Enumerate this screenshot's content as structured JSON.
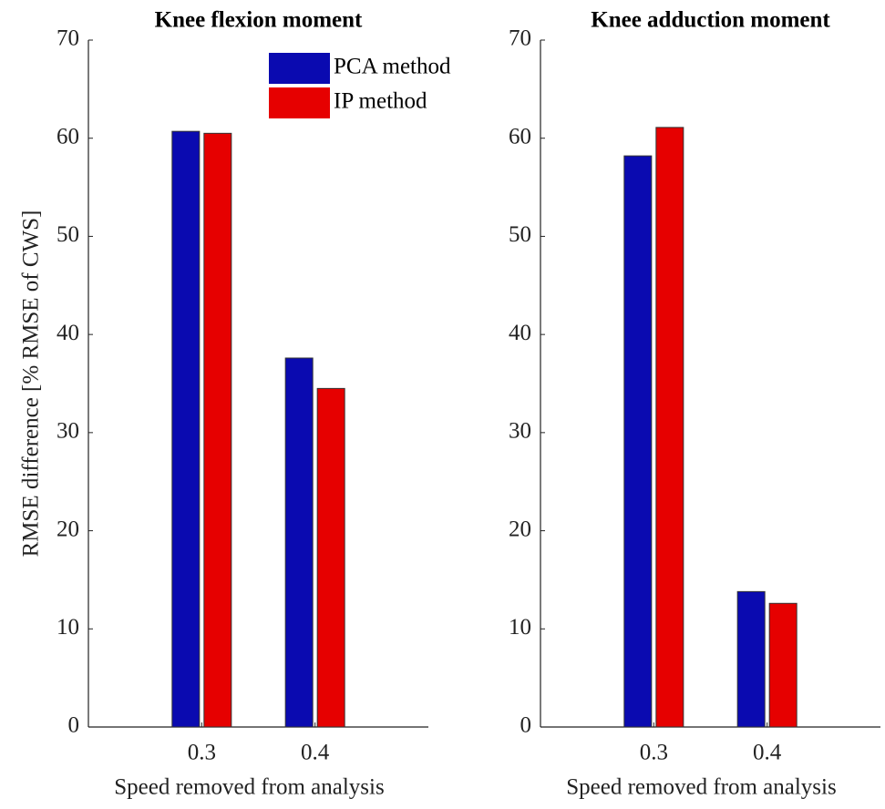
{
  "chart_data": [
    {
      "type": "bar",
      "title": "Knee flexion moment",
      "ylabel": "RMSE difference [% RMSE of CWS]",
      "xlabel": "Speed removed from analysis",
      "categories": [
        "0.3",
        "0.4"
      ],
      "series": [
        {
          "name": "PCA method",
          "color": "#0a0ab0",
          "values": [
            60.7,
            37.6
          ]
        },
        {
          "name": "IP method",
          "color": "#e60000",
          "values": [
            60.5,
            34.5
          ]
        }
      ],
      "ylim": [
        0,
        70
      ],
      "yticks": [
        0,
        10,
        20,
        30,
        40,
        50,
        60,
        70
      ],
      "legend": "top-right"
    },
    {
      "type": "bar",
      "title": "Knee adduction moment",
      "xlabel": "Speed removed from analysis",
      "categories": [
        "0.3",
        "0.4"
      ],
      "series": [
        {
          "name": "PCA method",
          "color": "#0a0ab0",
          "values": [
            58.2,
            13.8
          ]
        },
        {
          "name": "IP method",
          "color": "#e60000",
          "values": [
            61.1,
            12.6
          ]
        }
      ],
      "ylim": [
        0,
        70
      ],
      "yticks": [
        0,
        10,
        20,
        30,
        40,
        50,
        60,
        70
      ]
    }
  ]
}
